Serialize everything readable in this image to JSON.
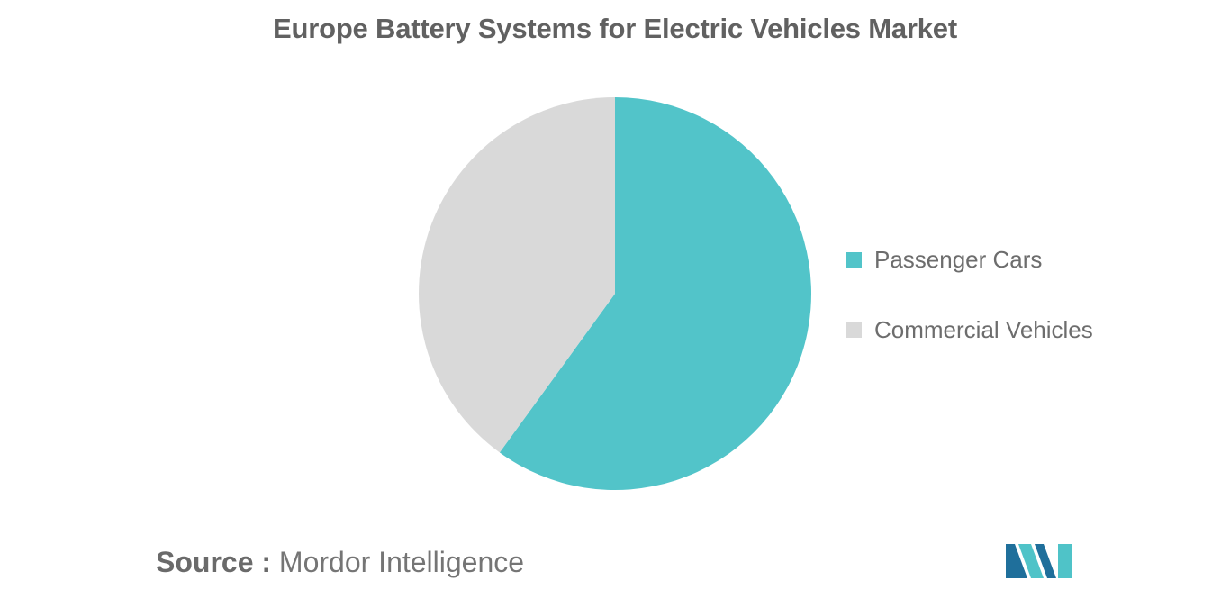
{
  "chart_data": {
    "type": "pie",
    "title": "Europe Battery Systems for Electric Vehicles Market",
    "slices": [
      {
        "name": "Passenger Cars",
        "value": 60,
        "color": "#52c4c9"
      },
      {
        "name": "Commercial Vehicles",
        "value": 40,
        "color": "#d9d9d9"
      }
    ],
    "start_angle_deg": 0,
    "direction": "clockwise",
    "legend_position": "right"
  },
  "footer": {
    "source_label": "Source :",
    "source_name": "Mordor Intelligence"
  },
  "logo": {
    "icon": "mordor-intelligence-logo",
    "colors": [
      "#1f6f9b",
      "#4fc3c8"
    ]
  }
}
